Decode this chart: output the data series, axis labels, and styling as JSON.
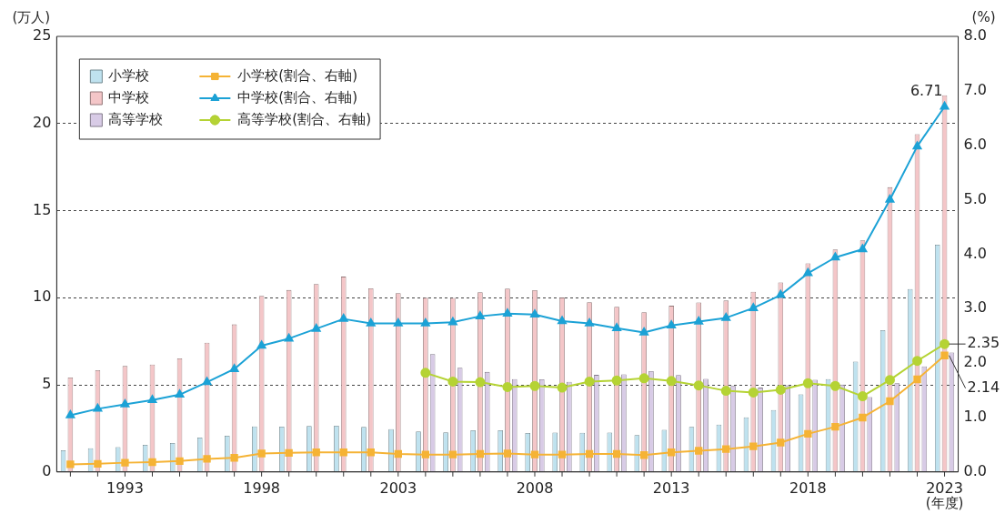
{
  "chart_data": {
    "type": "bar",
    "xlabel": "(年度)",
    "ylabel": "(万人)",
    "y2label": "(%)",
    "categories": [
      null,
      null,
      "1993",
      null,
      null,
      null,
      null,
      "1998",
      null,
      null,
      null,
      null,
      "2003",
      null,
      null,
      null,
      null,
      "2008",
      null,
      null,
      null,
      null,
      "2013",
      null,
      null,
      null,
      null,
      "2018",
      null,
      null,
      null,
      null,
      "2023"
    ],
    "series": [
      {
        "name": "小学校",
        "color": "#bfe2ef",
        "values": [
          1.24,
          1.36,
          1.43,
          1.56,
          1.66,
          1.98,
          2.08,
          2.61,
          2.6,
          2.64,
          2.65,
          2.59,
          2.46,
          2.33,
          2.27,
          2.39,
          2.39,
          2.24,
          2.26,
          2.25,
          2.26,
          2.12,
          2.42,
          2.59,
          2.72,
          3.14,
          3.55,
          4.46,
          5.33,
          6.33,
          8.14,
          10.5,
          13.04
        ]
      },
      {
        "name": "中学校",
        "color": "#f4c6c8",
        "values": [
          5.42,
          5.84,
          6.08,
          6.17,
          6.52,
          7.42,
          8.47,
          10.11,
          10.44,
          10.79,
          11.21,
          10.54,
          10.26,
          10.0,
          9.99,
          10.32,
          10.53,
          10.43,
          10.01,
          9.74,
          9.48,
          9.17,
          9.54,
          9.73,
          9.84,
          10.34,
          10.88,
          11.97,
          12.77,
          13.29,
          16.34,
          19.39,
          21.62
        ]
      },
      {
        "name": "高等学校",
        "color": "#d8cbe6",
        "values": [
          null,
          null,
          null,
          null,
          null,
          null,
          null,
          null,
          null,
          null,
          null,
          null,
          null,
          6.76,
          5.98,
          5.74,
          5.33,
          5.32,
          5.17,
          5.57,
          5.6,
          5.79,
          5.56,
          5.34,
          4.94,
          4.84,
          4.97,
          5.29,
          5.01,
          4.3,
          5.1,
          6.06,
          6.86
        ]
      },
      {
        "name": "小学校(割合、右軸)",
        "type": "line",
        "axis": "y2",
        "marker": "square",
        "color": "#f5b335",
        "values": [
          0.14,
          0.15,
          0.17,
          0.18,
          0.2,
          0.24,
          0.26,
          0.34,
          0.35,
          0.36,
          0.36,
          0.36,
          0.33,
          0.32,
          0.32,
          0.33,
          0.34,
          0.32,
          0.32,
          0.33,
          0.33,
          0.31,
          0.36,
          0.39,
          0.42,
          0.47,
          0.54,
          0.7,
          0.83,
          1.0,
          1.3,
          1.7,
          2.14
        ],
        "value_labels": [
          null,
          null,
          null,
          null,
          null,
          null,
          null,
          null,
          null,
          null,
          null,
          null,
          null,
          null,
          null,
          null,
          null,
          null,
          null,
          null,
          null,
          null,
          null,
          null,
          null,
          null,
          null,
          null,
          null,
          null,
          null,
          null,
          "2.14"
        ]
      },
      {
        "name": "中学校(割合、右軸)",
        "type": "line",
        "axis": "y2",
        "marker": "triangle",
        "color": "#1ca2d6",
        "values": [
          1.04,
          1.16,
          1.24,
          1.32,
          1.42,
          1.65,
          1.89,
          2.32,
          2.45,
          2.63,
          2.81,
          2.73,
          2.73,
          2.73,
          2.75,
          2.86,
          2.91,
          2.89,
          2.77,
          2.73,
          2.64,
          2.56,
          2.69,
          2.76,
          2.83,
          3.01,
          3.25,
          3.65,
          3.94,
          4.09,
          5.0,
          5.98,
          6.71
        ],
        "value_labels": [
          null,
          null,
          null,
          null,
          null,
          null,
          null,
          null,
          null,
          null,
          null,
          null,
          null,
          null,
          null,
          null,
          null,
          null,
          null,
          null,
          null,
          null,
          null,
          null,
          null,
          null,
          null,
          null,
          null,
          null,
          null,
          null,
          "6.71"
        ]
      },
      {
        "name": "高等学校(割合、右軸)",
        "type": "line",
        "axis": "y2",
        "marker": "circle",
        "color": "#b5d334",
        "values": [
          null,
          null,
          null,
          null,
          null,
          null,
          null,
          null,
          null,
          null,
          null,
          null,
          null,
          1.82,
          1.66,
          1.65,
          1.56,
          1.58,
          1.55,
          1.66,
          1.68,
          1.72,
          1.67,
          1.59,
          1.49,
          1.46,
          1.51,
          1.63,
          1.58,
          1.39,
          1.69,
          2.04,
          2.35
        ],
        "value_labels": [
          null,
          null,
          null,
          null,
          null,
          null,
          null,
          null,
          null,
          null,
          null,
          null,
          null,
          null,
          null,
          null,
          null,
          null,
          null,
          null,
          null,
          null,
          null,
          null,
          null,
          null,
          null,
          null,
          null,
          null,
          null,
          null,
          "2.35"
        ]
      }
    ],
    "ylim": [
      0,
      25
    ],
    "yticks": [
      0,
      5,
      10,
      15,
      20,
      25
    ],
    "y2lim": [
      0,
      8
    ],
    "y2ticks": [
      {
        "value": 0,
        "label": "0.0"
      },
      {
        "value": 1,
        "label": "1.0"
      },
      {
        "value": 2,
        "label": "2.0"
      },
      {
        "value": 3,
        "label": "3.0"
      },
      {
        "value": 4,
        "label": "4.0"
      },
      {
        "value": 5,
        "label": "5.0"
      },
      {
        "value": 6,
        "label": "6.0"
      },
      {
        "value": 7,
        "label": "7.0"
      },
      {
        "value": 8,
        "label": "8.0"
      }
    ],
    "grid": "y",
    "legend": "top left"
  }
}
